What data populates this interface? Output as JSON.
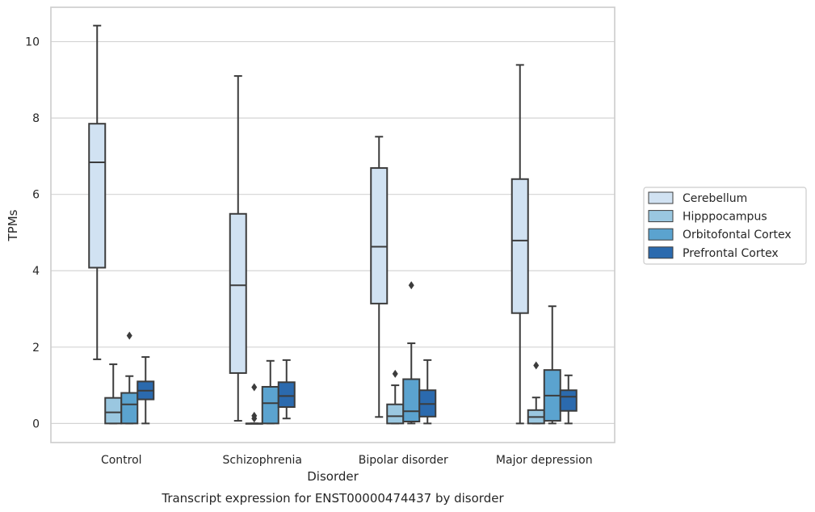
{
  "caption": "Transcript expression for ENST00000474437 by disorder",
  "chart_data": {
    "type": "boxplot",
    "xlabel": "Disorder",
    "ylabel": "TPMs",
    "ylim": [
      -0.5,
      10.9
    ],
    "yticks": [
      0,
      2,
      4,
      6,
      8,
      10
    ],
    "grid": "horizontal",
    "legend_position": "right",
    "categories": [
      "Control",
      "Schizophrenia",
      "Bipolar disorder",
      "Major depression"
    ],
    "series": [
      {
        "name": "Cerebellum",
        "color": "#d1e2f2",
        "boxes": [
          {
            "whisker_low": 1.68,
            "q1": 4.08,
            "median": 6.84,
            "q3": 7.85,
            "whisker_high": 10.42,
            "outliers": []
          },
          {
            "whisker_low": 0.07,
            "q1": 1.32,
            "median": 3.62,
            "q3": 5.49,
            "whisker_high": 9.1,
            "outliers": []
          },
          {
            "whisker_low": 0.17,
            "q1": 3.14,
            "median": 4.63,
            "q3": 6.69,
            "whisker_high": 7.51,
            "outliers": []
          },
          {
            "whisker_low": 0.0,
            "q1": 2.89,
            "median": 4.79,
            "q3": 6.4,
            "whisker_high": 9.39,
            "outliers": []
          }
        ]
      },
      {
        "name": "Hipppocampus",
        "color": "#9ac7e0",
        "boxes": [
          {
            "whisker_low": 0.0,
            "q1": 0.0,
            "median": 0.29,
            "q3": 0.67,
            "whisker_high": 1.55,
            "outliers": []
          },
          {
            "whisker_low": 0.0,
            "q1": 0.0,
            "median": 0.0,
            "q3": 0.0,
            "whisker_high": 0.0,
            "outliers": [
              0.95,
              0.2,
              0.13
            ]
          },
          {
            "whisker_low": 0.0,
            "q1": 0.0,
            "median": 0.19,
            "q3": 0.5,
            "whisker_high": 1.0,
            "outliers": [
              1.3
            ]
          },
          {
            "whisker_low": 0.0,
            "q1": 0.0,
            "median": 0.17,
            "q3": 0.35,
            "whisker_high": 0.68,
            "outliers": [
              1.52
            ]
          }
        ]
      },
      {
        "name": "Orbitofontal Cortex",
        "color": "#5ba3cf",
        "boxes": [
          {
            "whisker_low": 0.0,
            "q1": 0.0,
            "median": 0.5,
            "q3": 0.8,
            "whisker_high": 1.24,
            "outliers": [
              2.3
            ]
          },
          {
            "whisker_low": 0.0,
            "q1": 0.0,
            "median": 0.53,
            "q3": 0.96,
            "whisker_high": 1.64,
            "outliers": []
          },
          {
            "whisker_low": 0.0,
            "q1": 0.05,
            "median": 0.32,
            "q3": 1.16,
            "whisker_high": 2.1,
            "outliers": [
              3.62
            ]
          },
          {
            "whisker_low": 0.0,
            "q1": 0.07,
            "median": 0.73,
            "q3": 1.4,
            "whisker_high": 3.07,
            "outliers": []
          }
        ]
      },
      {
        "name": "Prefrontal Cortex",
        "color": "#2b6aae",
        "boxes": [
          {
            "whisker_low": 0.0,
            "q1": 0.63,
            "median": 0.86,
            "q3": 1.1,
            "whisker_high": 1.74,
            "outliers": []
          },
          {
            "whisker_low": 0.13,
            "q1": 0.43,
            "median": 0.72,
            "q3": 1.08,
            "whisker_high": 1.66,
            "outliers": []
          },
          {
            "whisker_low": 0.0,
            "q1": 0.18,
            "median": 0.51,
            "q3": 0.87,
            "whisker_high": 1.66,
            "outliers": []
          },
          {
            "whisker_low": 0.0,
            "q1": 0.33,
            "median": 0.7,
            "q3": 0.87,
            "whisker_high": 1.26,
            "outliers": []
          }
        ]
      }
    ]
  }
}
